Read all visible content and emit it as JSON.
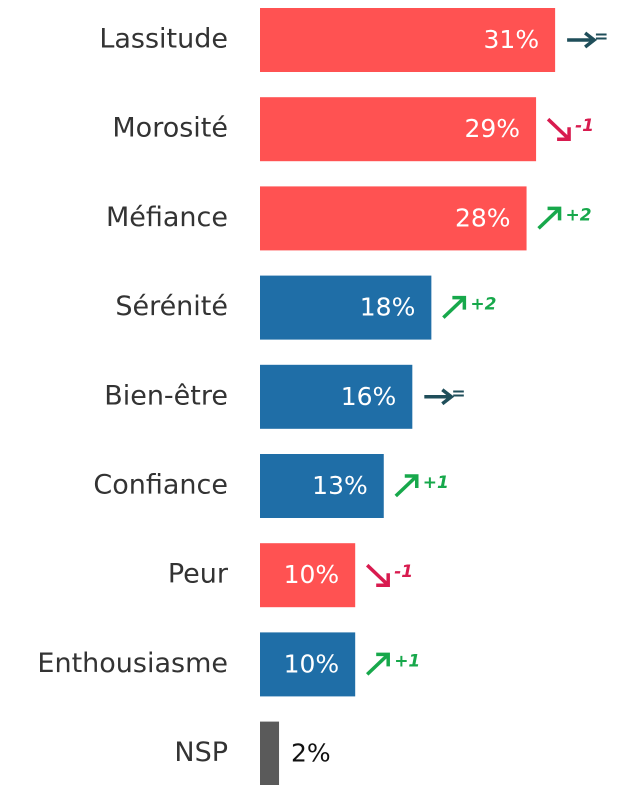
{
  "chart_data": {
    "type": "hbar",
    "categories": [
      "Lassitude",
      "Morosité",
      "Méfiance",
      "Sérénité",
      "Bien-être",
      "Confiance",
      "Peur",
      "Enthousiasme",
      "NSP"
    ],
    "values": [
      31,
      29,
      28,
      18,
      16,
      13,
      10,
      10,
      2
    ],
    "value_labels": [
      "31%",
      "29%",
      "28%",
      "18%",
      "16%",
      "13%",
      "10%",
      "10%",
      "2%"
    ],
    "colors": [
      "#ff5252",
      "#ff5252",
      "#ff5252",
      "#1f6ea7",
      "#1f6ea7",
      "#1f6ea7",
      "#ff5252",
      "#1f6ea7",
      "#5a5a5a"
    ],
    "changes": [
      "=",
      "-1",
      "+2",
      "+2",
      "=",
      "+1",
      "-1",
      "+1",
      null
    ],
    "change_colors": [
      "#1f4e5a",
      "#d81b4f",
      "#17a84b",
      "#17a84b",
      "#1f4e5a",
      "#17a84b",
      "#d81b4f",
      "#17a84b",
      null
    ]
  }
}
